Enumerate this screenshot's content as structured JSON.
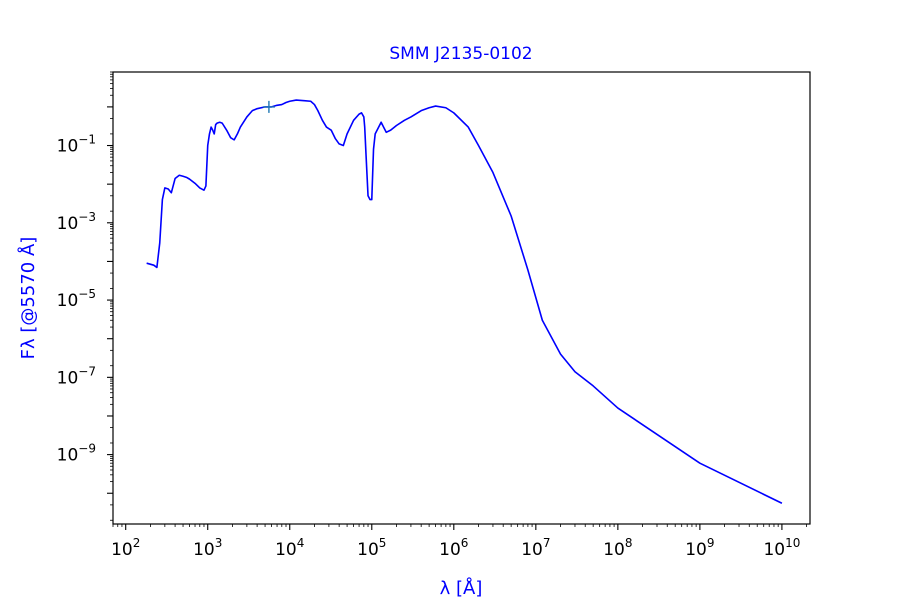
{
  "chart_data": {
    "type": "line",
    "title": "SMM J2135-0102",
    "xlabel": "λ [Å]",
    "ylabel": "Fλ [@5570 Å]",
    "xscale": "log",
    "yscale": "log",
    "xlim": [
      70,
      22000000000.0
    ],
    "ylim": [
      1.6e-11,
      8
    ],
    "x_ticks": [
      {
        "value": 100,
        "base": "10",
        "exp": "2"
      },
      {
        "value": 1000,
        "base": "10",
        "exp": "3"
      },
      {
        "value": 10000,
        "base": "10",
        "exp": "4"
      },
      {
        "value": 100000,
        "base": "10",
        "exp": "5"
      },
      {
        "value": 1000000,
        "base": "10",
        "exp": "6"
      },
      {
        "value": 10000000,
        "base": "10",
        "exp": "7"
      },
      {
        "value": 100000000,
        "base": "10",
        "exp": "8"
      },
      {
        "value": 1000000000,
        "base": "10",
        "exp": "9"
      },
      {
        "value": 10000000000,
        "base": "10",
        "exp": "10"
      }
    ],
    "y_ticks": [
      {
        "value": 0.1,
        "base": "10",
        "exp": "−1"
      },
      {
        "value": 0.001,
        "base": "10",
        "exp": "−3"
      },
      {
        "value": 1e-05,
        "base": "10",
        "exp": "−5"
      },
      {
        "value": 1e-07,
        "base": "10",
        "exp": "−7"
      },
      {
        "value": 1e-09,
        "base": "10",
        "exp": "−9"
      }
    ],
    "grid": false,
    "colors": {
      "line": "#0000ff",
      "marker": "#1f77b4",
      "title": "#0000ff",
      "labels": "#0000ff"
    },
    "series": [
      {
        "x": [
          180,
          220,
          240,
          260,
          280,
          300,
          330,
          360,
          400,
          450,
          500,
          550,
          600,
          700,
          800,
          900,
          950,
          1000,
          1050,
          1100,
          1150,
          1200,
          1250,
          1300,
          1400,
          1500,
          1700,
          1900,
          2100,
          2300,
          2500,
          3000,
          3500,
          4000,
          5000,
          6000,
          7000,
          8000,
          9000,
          10000,
          12000,
          15000,
          18000,
          20000,
          22000,
          25000,
          28000,
          32000,
          36000,
          40000,
          45000,
          50000,
          60000,
          70000,
          75000,
          80000,
          82000,
          85000,
          90000,
          95000,
          100000,
          105000,
          110000,
          130000,
          150000,
          170000,
          200000,
          250000,
          300000,
          400000,
          500000,
          600000,
          800000,
          1000000,
          1500000,
          2000000,
          3000000,
          5000000,
          8000000,
          12000000,
          20000000,
          30000000,
          50000000,
          100000000,
          1000000000,
          10000000000
        ],
        "y": [
          9e-05,
          8e-05,
          7e-05,
          0.0003,
          0.004,
          0.008,
          0.0075,
          0.006,
          0.014,
          0.017,
          0.016,
          0.015,
          0.0135,
          0.0105,
          0.008,
          0.007,
          0.009,
          0.1,
          0.2,
          0.3,
          0.25,
          0.2,
          0.35,
          0.38,
          0.4,
          0.38,
          0.25,
          0.16,
          0.14,
          0.2,
          0.3,
          0.55,
          0.8,
          0.9,
          1.0,
          1.0,
          1.1,
          1.15,
          1.3,
          1.4,
          1.5,
          1.45,
          1.4,
          1.15,
          0.8,
          0.45,
          0.3,
          0.25,
          0.15,
          0.11,
          0.1,
          0.2,
          0.45,
          0.65,
          0.7,
          0.55,
          0.3,
          0.06,
          0.005,
          0.004,
          0.004,
          0.08,
          0.2,
          0.4,
          0.22,
          0.25,
          0.33,
          0.45,
          0.55,
          0.8,
          0.95,
          1.05,
          0.95,
          0.7,
          0.3,
          0.1,
          0.02,
          0.0015,
          6e-05,
          3e-06,
          4e-07,
          1.4e-07,
          6e-08,
          1.6e-08,
          6e-10,
          5.5e-11
        ]
      }
    ],
    "marker": {
      "x": 5570,
      "y": 1.0,
      "symbol": "+"
    }
  }
}
